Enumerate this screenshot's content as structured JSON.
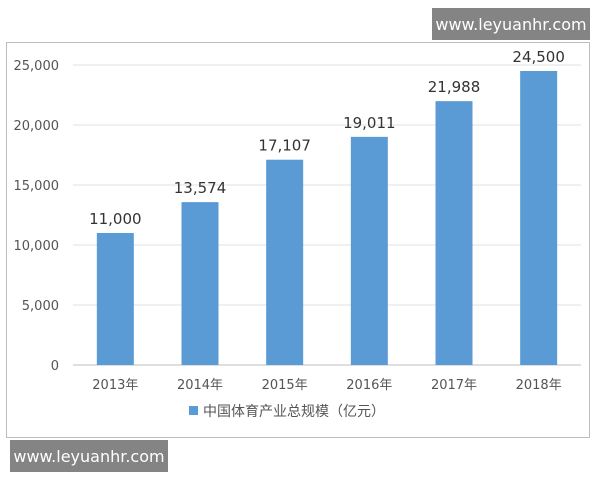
{
  "watermark": {
    "top": "www.leyuanhr.com",
    "bottom": "www.leyuanhr.com"
  },
  "chart_data": {
    "type": "bar",
    "categories": [
      "2013年",
      "2014年",
      "2015年",
      "2016年",
      "2017年",
      "2018年"
    ],
    "series": [
      {
        "name": "中国体育产业总规模（亿元）",
        "values": [
          11000,
          13574,
          17107,
          19011,
          21988,
          24500
        ],
        "labels": [
          "11,000",
          "13,574",
          "17,107",
          "19,011",
          "21,988",
          "24,500"
        ],
        "color": "#5b9bd5"
      }
    ],
    "yticks": [
      "0",
      "5,000",
      "10,000",
      "15,000",
      "20,000",
      "25,000"
    ],
    "ylim": [
      0,
      25000
    ],
    "ystep": 5000,
    "grid": true,
    "legend": "bottom-center"
  }
}
